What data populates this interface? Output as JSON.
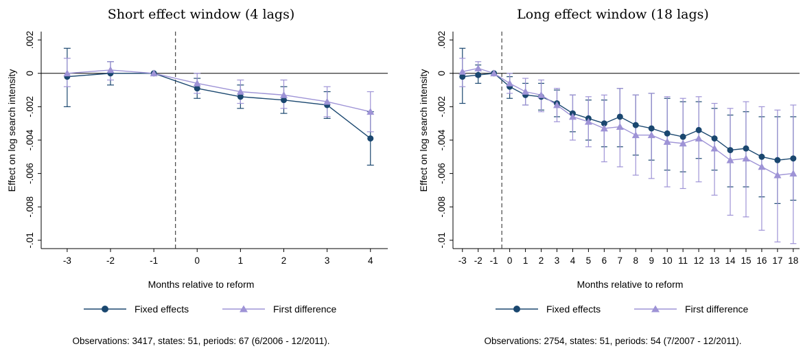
{
  "chart_data": [
    {
      "type": "line",
      "title": "Short effect window (4 lags)",
      "xlabel": "Months relative to reform",
      "ylabel": "Effect on log search intensity",
      "x": [
        -3,
        -2,
        -1,
        0,
        1,
        2,
        3,
        4
      ],
      "x_tick_labels": [
        "-3",
        "-2",
        "-1",
        "0",
        "1",
        "2",
        "3",
        "4"
      ],
      "y_ticks": [
        0.002,
        0,
        -0.002,
        -0.004,
        -0.006,
        -0.008,
        -0.01
      ],
      "y_tick_labels": [
        ".002",
        "0",
        "-.002",
        "-.004",
        "-.006",
        "-.008",
        "-.01"
      ],
      "ylim": [
        -0.0105,
        0.0025
      ],
      "xlim": [
        -3.6,
        4.4
      ],
      "reference_line_x": -0.5,
      "series": [
        {
          "name": "Fixed effects",
          "marker": "circle",
          "color": "#1a476f",
          "values": [
            -0.0002,
            0.0,
            0.0,
            -0.0009,
            -0.0014,
            -0.0016,
            -0.0019,
            -0.0039
          ],
          "ci_low": [
            -0.002,
            -0.0007,
            0.0,
            -0.0015,
            -0.0021,
            -0.0024,
            -0.0027,
            -0.0055
          ],
          "ci_high": [
            0.0015,
            0.0007,
            0.0,
            -0.0003,
            -0.0007,
            -0.0008,
            -0.0011,
            -0.0023
          ]
        },
        {
          "name": "First difference",
          "marker": "triangle",
          "color": "#9e93d6",
          "values": [
            0.0,
            0.0002,
            0.0,
            -0.0006,
            -0.0011,
            -0.0013,
            -0.0017,
            -0.0023
          ],
          "ci_low": [
            -0.0008,
            -0.0004,
            0.0,
            -0.0012,
            -0.0018,
            -0.0021,
            -0.0026,
            -0.0035
          ],
          "ci_high": [
            0.0009,
            0.0007,
            0.0,
            0.0,
            -0.0004,
            -0.0004,
            -0.0008,
            -0.0011
          ]
        }
      ],
      "legend": [
        "Fixed effects",
        "First difference"
      ],
      "note": "Observations: 3417, states: 51, periods: 67 (6/2006 - 12/2011)."
    },
    {
      "type": "line",
      "title": "Long effect window (18 lags)",
      "xlabel": "Months relative to reform",
      "ylabel": "Effect on log search intensity",
      "x": [
        -3,
        -2,
        -1,
        0,
        1,
        2,
        3,
        4,
        5,
        6,
        7,
        8,
        9,
        10,
        11,
        12,
        13,
        14,
        15,
        16,
        17,
        18
      ],
      "x_tick_labels": [
        "-3",
        "-2",
        "-1",
        "0",
        "1",
        "2",
        "3",
        "4",
        "5",
        "6",
        "7",
        "8",
        "9",
        "10",
        "11",
        "12",
        "13",
        "14",
        "15",
        "16",
        "17",
        "18"
      ],
      "y_ticks": [
        0.002,
        0,
        -0.002,
        -0.004,
        -0.006,
        -0.008,
        -0.01
      ],
      "y_tick_labels": [
        ".002",
        "0",
        "-.002",
        "-.004",
        "-.006",
        "-.008",
        "-.01"
      ],
      "ylim": [
        -0.0105,
        0.0025
      ],
      "xlim": [
        -3.6,
        18.4
      ],
      "reference_line_x": -0.5,
      "series": [
        {
          "name": "Fixed effects",
          "marker": "circle",
          "color": "#1a476f",
          "values": [
            -0.0002,
            -0.0001,
            0.0,
            -0.0008,
            -0.0013,
            -0.0014,
            -0.0018,
            -0.0024,
            -0.0027,
            -0.003,
            -0.0026,
            -0.0031,
            -0.0033,
            -0.0036,
            -0.0038,
            -0.0034,
            -0.0039,
            -0.0046,
            -0.0045,
            -0.005,
            -0.0052,
            -0.0051
          ],
          "ci_low": [
            -0.0018,
            -0.0006,
            0.0,
            -0.0015,
            -0.0019,
            -0.0022,
            -0.0026,
            -0.0035,
            -0.004,
            -0.0044,
            -0.0044,
            -0.0049,
            -0.0052,
            -0.0058,
            -0.0059,
            -0.0051,
            -0.0058,
            -0.0068,
            -0.0068,
            -0.0074,
            -0.0078,
            -0.0076
          ],
          "ci_high": [
            0.0015,
            0.0005,
            0.0,
            -0.0002,
            -0.0006,
            -0.0006,
            -0.001,
            -0.0013,
            -0.0016,
            -0.0016,
            -0.0009,
            -0.0013,
            -0.0012,
            -0.0015,
            -0.0017,
            -0.0017,
            -0.0021,
            -0.0025,
            -0.0023,
            -0.0026,
            -0.0026,
            -0.0026
          ]
        },
        {
          "name": "First difference",
          "marker": "triangle",
          "color": "#9e93d6",
          "values": [
            0.0001,
            0.0003,
            0.0,
            -0.0006,
            -0.0011,
            -0.0013,
            -0.0019,
            -0.0026,
            -0.0029,
            -0.0033,
            -0.0032,
            -0.0037,
            -0.0037,
            -0.0041,
            -0.0042,
            -0.0039,
            -0.0045,
            -0.0052,
            -0.0051,
            -0.0056,
            -0.0061,
            -0.006
          ],
          "ci_low": [
            -0.0008,
            -0.0002,
            0.0,
            -0.0012,
            -0.0019,
            -0.0023,
            -0.0029,
            -0.004,
            -0.0044,
            -0.0053,
            -0.0056,
            -0.0061,
            -0.0063,
            -0.0068,
            -0.0069,
            -0.0065,
            -0.0073,
            -0.0085,
            -0.0086,
            -0.0094,
            -0.0101,
            -0.0102
          ],
          "ci_high": [
            0.0009,
            0.0007,
            0.0,
            0.0,
            -0.0003,
            -0.0004,
            -0.0009,
            -0.0013,
            -0.0014,
            -0.0013,
            -0.0009,
            -0.0013,
            -0.0012,
            -0.0014,
            -0.0015,
            -0.0014,
            -0.0018,
            -0.0021,
            -0.0017,
            -0.002,
            -0.0022,
            -0.0019
          ]
        }
      ],
      "legend": [
        "Fixed effects",
        "First difference"
      ],
      "note": "Observations: 2754, states: 51, periods: 54 (7/2007 - 12/2011)."
    }
  ]
}
